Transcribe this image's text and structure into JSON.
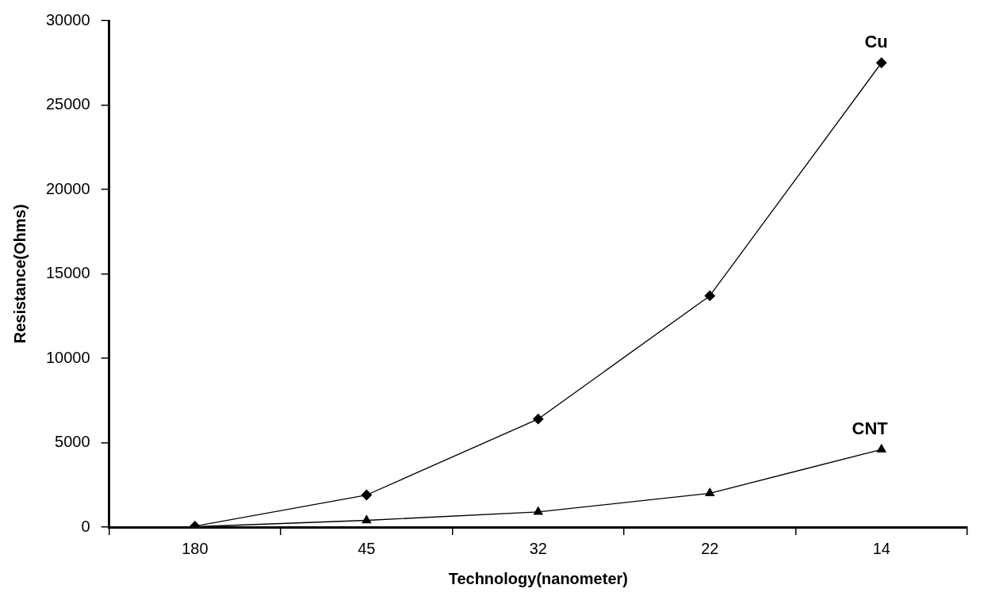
{
  "chart_data": {
    "type": "line",
    "xlabel": "Technology(nanometer)",
    "ylabel": "Resistance(Ohms)",
    "categories": [
      "180",
      "45",
      "32",
      "22",
      "14"
    ],
    "series": [
      {
        "name": "Cu",
        "color": "#000000",
        "marker": "diamond",
        "values": [
          50,
          1900,
          6400,
          13700,
          27500
        ]
      },
      {
        "name": "CNT",
        "color": "#000000",
        "marker": "triangle",
        "values": [
          20,
          400,
          900,
          2000,
          4600
        ]
      }
    ],
    "ylim": [
      0,
      30000
    ],
    "yticks": [
      0,
      5000,
      10000,
      15000,
      20000,
      25000,
      30000
    ],
    "grid": false,
    "legend": false,
    "line_style": "solid"
  }
}
